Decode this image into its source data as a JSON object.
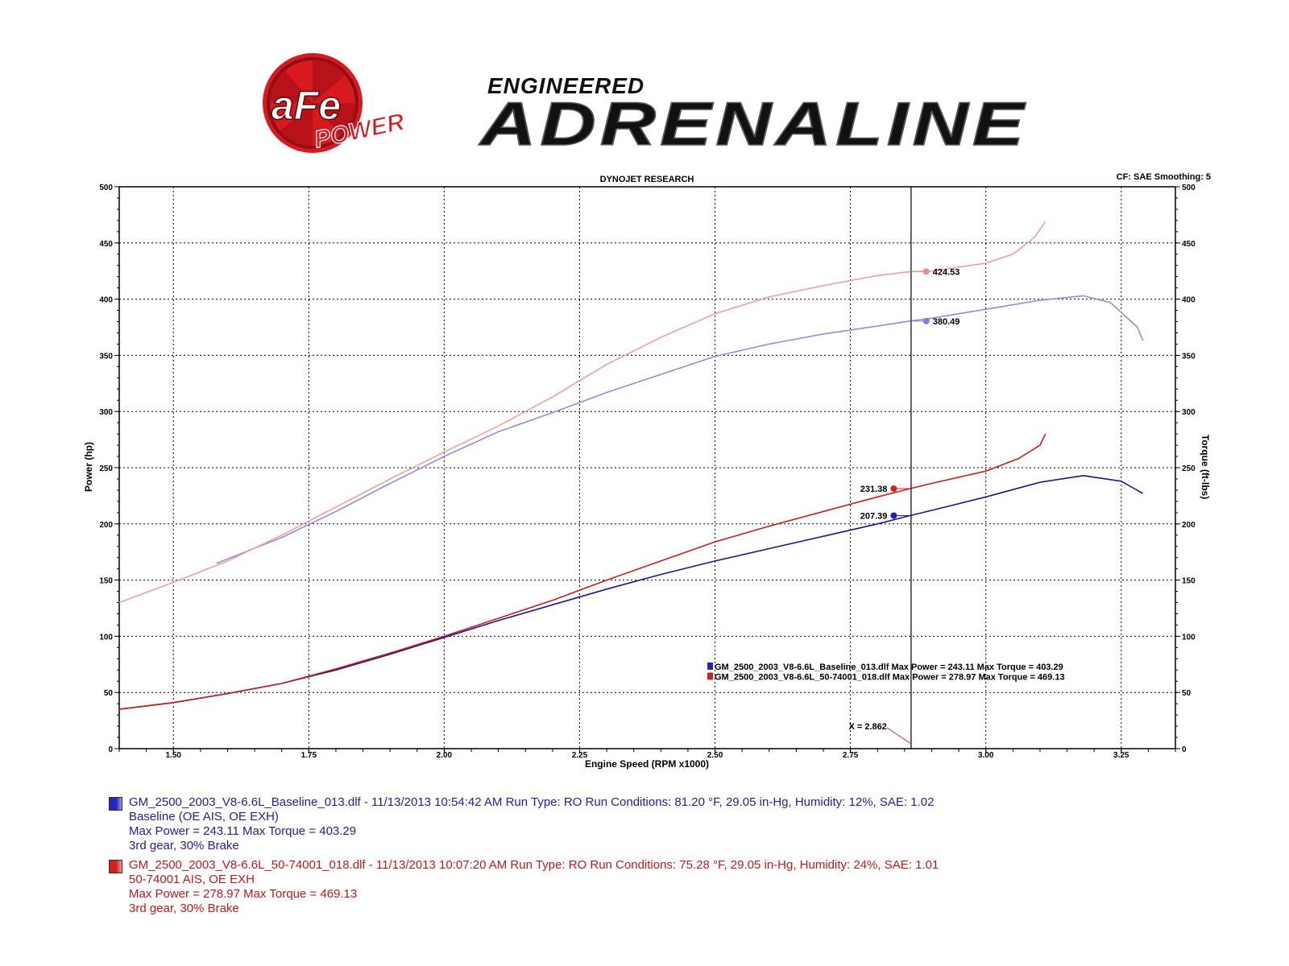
{
  "branding": {
    "logo_text": "aFe",
    "logo_sub": "POWER",
    "tagline_top": "ENGINEERED",
    "tagline_main": "ADRENALINE"
  },
  "chart_data": {
    "type": "line",
    "title": "DYNOJET RESEARCH",
    "subtitle": "CF: SAE  Smoothing: 5",
    "xlabel": "Engine Speed (RPM x1000)",
    "ylabel": "Power (hp)",
    "y2label": "Torque (ft-lbs)",
    "xlim": [
      1.4,
      3.35
    ],
    "ylim": [
      0,
      500
    ],
    "y2lim": [
      0,
      500
    ],
    "xticks": [
      "1.50",
      "1.75",
      "2.00",
      "2.25",
      "2.50",
      "2.75",
      "3.00",
      "3.25"
    ],
    "yticks": [
      "0",
      "50",
      "100",
      "150",
      "200",
      "250",
      "300",
      "350",
      "400",
      "450",
      "500"
    ],
    "grid": true,
    "cursor": {
      "x": 2.862,
      "label": "X = 2.862"
    },
    "series": [
      {
        "kind": "power",
        "run": 0,
        "color": "#1a1a8c",
        "points": [
          [
            1.4,
            35
          ],
          [
            1.5,
            41
          ],
          [
            1.6,
            49
          ],
          [
            1.7,
            58
          ],
          [
            1.8,
            70
          ],
          [
            1.9,
            84
          ],
          [
            2.0,
            99
          ],
          [
            2.1,
            114
          ],
          [
            2.2,
            128
          ],
          [
            2.3,
            142
          ],
          [
            2.4,
            155
          ],
          [
            2.5,
            167
          ],
          [
            2.6,
            178
          ],
          [
            2.7,
            189
          ],
          [
            2.8,
            200
          ],
          [
            2.86,
            207.4
          ],
          [
            2.9,
            212
          ],
          [
            3.0,
            224
          ],
          [
            3.1,
            237
          ],
          [
            3.18,
            243
          ],
          [
            3.25,
            238
          ],
          [
            3.29,
            227
          ]
        ]
      },
      {
        "kind": "power",
        "run": 1,
        "color": "#c81e1e",
        "points": [
          [
            1.4,
            35
          ],
          [
            1.5,
            41
          ],
          [
            1.6,
            49
          ],
          [
            1.7,
            58
          ],
          [
            1.8,
            71
          ],
          [
            1.9,
            85
          ],
          [
            2.0,
            100
          ],
          [
            2.1,
            116
          ],
          [
            2.2,
            132
          ],
          [
            2.3,
            150
          ],
          [
            2.4,
            167
          ],
          [
            2.5,
            184
          ],
          [
            2.6,
            198
          ],
          [
            2.7,
            211
          ],
          [
            2.8,
            224
          ],
          [
            2.86,
            231.4
          ],
          [
            2.9,
            236
          ],
          [
            3.0,
            247
          ],
          [
            3.06,
            258
          ],
          [
            3.1,
            270
          ],
          [
            3.11,
            280
          ]
        ]
      },
      {
        "kind": "torque",
        "run": 0,
        "color": "#8f8fd8",
        "points": [
          [
            1.58,
            165
          ],
          [
            1.7,
            188
          ],
          [
            1.8,
            211
          ],
          [
            1.9,
            236
          ],
          [
            2.0,
            260
          ],
          [
            2.1,
            282
          ],
          [
            2.2,
            299
          ],
          [
            2.3,
            317
          ],
          [
            2.4,
            333
          ],
          [
            2.5,
            349
          ],
          [
            2.6,
            360
          ],
          [
            2.7,
            369
          ],
          [
            2.8,
            376
          ],
          [
            2.86,
            380.5
          ],
          [
            2.9,
            383
          ],
          [
            3.0,
            391
          ],
          [
            3.1,
            399
          ],
          [
            3.18,
            403
          ],
          [
            3.23,
            397
          ],
          [
            3.28,
            375
          ],
          [
            3.29,
            363
          ]
        ]
      },
      {
        "kind": "torque",
        "run": 1,
        "color": "#f0a0a0",
        "points": [
          [
            1.4,
            130
          ],
          [
            1.5,
            148
          ],
          [
            1.6,
            167
          ],
          [
            1.7,
            190
          ],
          [
            1.8,
            215
          ],
          [
            1.9,
            240
          ],
          [
            2.0,
            264
          ],
          [
            2.1,
            287
          ],
          [
            2.2,
            313
          ],
          [
            2.3,
            342
          ],
          [
            2.4,
            366
          ],
          [
            2.5,
            387
          ],
          [
            2.6,
            402
          ],
          [
            2.7,
            412
          ],
          [
            2.8,
            421
          ],
          [
            2.86,
            424.5
          ],
          [
            2.9,
            425
          ],
          [
            3.0,
            432
          ],
          [
            3.05,
            440
          ],
          [
            3.09,
            455
          ],
          [
            3.11,
            469
          ]
        ]
      }
    ],
    "markers": [
      {
        "label": "424.53",
        "x": 2.89,
        "y": 424.53,
        "color": "#f08a8a",
        "side": "right"
      },
      {
        "label": "380.49",
        "x": 2.89,
        "y": 380.49,
        "color": "#8080e0",
        "side": "right"
      },
      {
        "label": "231.38",
        "x": 2.83,
        "y": 231.38,
        "color": "#d42020",
        "side": "left"
      },
      {
        "label": "207.39",
        "x": 2.83,
        "y": 207.39,
        "color": "#1a1ac0",
        "side": "left"
      }
    ],
    "inline_legend": [
      {
        "color": "#2222cc",
        "text": "GM_2500_2003_V8-6.6L_Baseline_013.dlf Max Power = 243.11     Max Torque = 403.29"
      },
      {
        "color": "#cc2222",
        "text": "GM_2500_2003_V8-6.6L_50-74001_018.dlf Max Power = 278.97     Max Torque = 469.13"
      }
    ]
  },
  "runs": [
    {
      "color": "#2525c0",
      "text_color": "#1f1f9c",
      "line1": "GM_2500_2003_V8-6.6L_Baseline_013.dlf - 11/13/2013 10:54:42 AM  Run Type: RO  Run Conditions: 81.20 °F, 29.05 in-Hg,  Humidity:  12%, SAE: 1.02",
      "line2": "Baseline (OE AIS, OE EXH)",
      "line3": "Max Power = 243.11  Max Torque = 403.29",
      "line4": "3rd gear, 30% Brake"
    },
    {
      "color": "#d42020",
      "text_color": "#c21a1a",
      "line1": "GM_2500_2003_V8-6.6L_50-74001_018.dlf - 11/13/2013 10:07:20 AM  Run Type: RO  Run Conditions: 75.28 °F, 29.05 in-Hg,  Humidity:  24%, SAE: 1.01",
      "line2": "50-74001 AIS, OE EXH",
      "line3": "Max Power = 278.97  Max Torque = 469.13",
      "line4": "3rd gear, 30% Brake"
    }
  ]
}
